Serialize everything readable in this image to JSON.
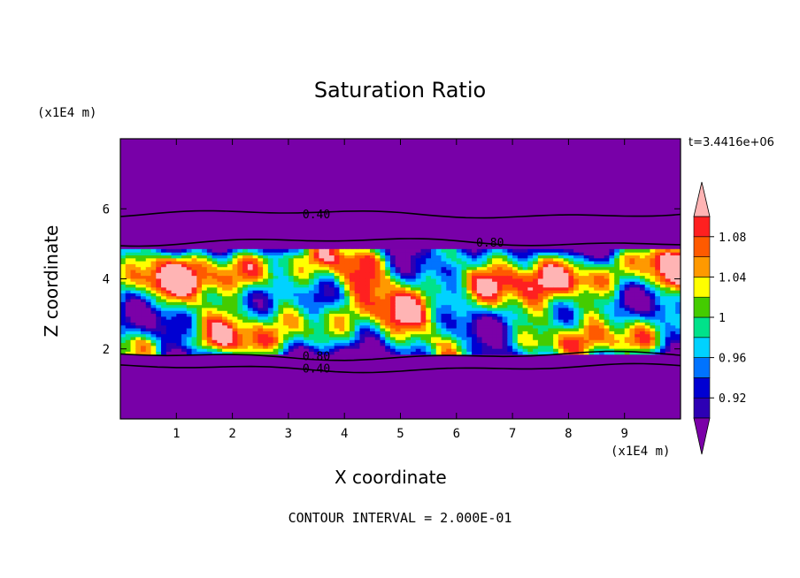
{
  "chart_data": {
    "type": "heatmap",
    "title": "Saturation Ratio",
    "xlabel": "X coordinate",
    "ylabel": "Z coordinate",
    "x_unit": "(x1E4 m)",
    "y_unit": "(x1E4 m)",
    "timestamp": "t=3.4416e+06",
    "footer": "CONTOUR INTERVAL = 2.000E-01",
    "xlim": [
      0,
      10
    ],
    "ylim": [
      0,
      8
    ],
    "x_ticks": [
      1,
      2,
      3,
      4,
      5,
      6,
      7,
      8,
      9
    ],
    "y_ticks": [
      2,
      4,
      6
    ],
    "colorbar": {
      "labels": [
        "1.08",
        "1.04",
        "1",
        "0.96",
        "0.92"
      ],
      "label_values": [
        1.08,
        1.04,
        1.0,
        0.96,
        0.92
      ],
      "levels": [
        0.9,
        0.92,
        0.94,
        0.96,
        0.98,
        1.0,
        1.02,
        1.04,
        1.06,
        1.08,
        1.1
      ],
      "colors": [
        "#7b00a8",
        "#2d00b4",
        "#0000d2",
        "#0073ff",
        "#00d2ff",
        "#00e28a",
        "#44cc00",
        "#ffff00",
        "#ff9900",
        "#ff5a00",
        "#ff2020",
        "#ffb4b4"
      ]
    },
    "background_color": "#7800a8",
    "moist_layer_z": [
      1.85,
      4.85
    ],
    "contour_lines": [
      {
        "label": "0.40",
        "z": 5.85,
        "label_x": 3.5
      },
      {
        "label": "0.80",
        "z": 5.05,
        "label_x": 6.6
      },
      {
        "label": "0.80",
        "z": 1.8,
        "label_x": 3.5
      },
      {
        "label": "0.40",
        "z": 1.45,
        "label_x": 3.5
      }
    ]
  }
}
